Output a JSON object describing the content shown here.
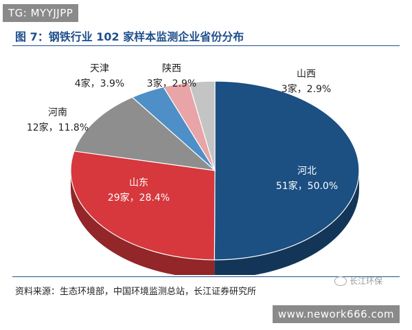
{
  "watermark_top": "TG: MYYJJPP",
  "watermark_bottom": "www.nework666.com",
  "wechat_label": "长江环保",
  "chart_data": {
    "type": "pie",
    "title": "图 7：钢铁行业 102 家样本监测企业省份分布",
    "source": "资料来源：生态环境部，中国环境监测总站，长江证券研究所",
    "slices": [
      {
        "name": "河北",
        "count_label": "51家，50.0%",
        "value": 50.0,
        "color": "#1c4f82"
      },
      {
        "name": "山东",
        "count_label": "29家，28.4%",
        "value": 28.4,
        "color": "#d6383d"
      },
      {
        "name": "河南",
        "count_label": "12家，11.8%",
        "value": 11.8,
        "color": "#8e8e8e"
      },
      {
        "name": "天津",
        "count_label": "4家，3.9%",
        "value": 3.9,
        "color": "#4f8fc7"
      },
      {
        "name": "陕西",
        "count_label": "3家，2.9%",
        "value": 2.9,
        "color": "#e8a4a6"
      },
      {
        "name": "山西",
        "count_label": "3家，2.9%",
        "value": 2.9,
        "color": "#c4c4c4"
      }
    ]
  }
}
